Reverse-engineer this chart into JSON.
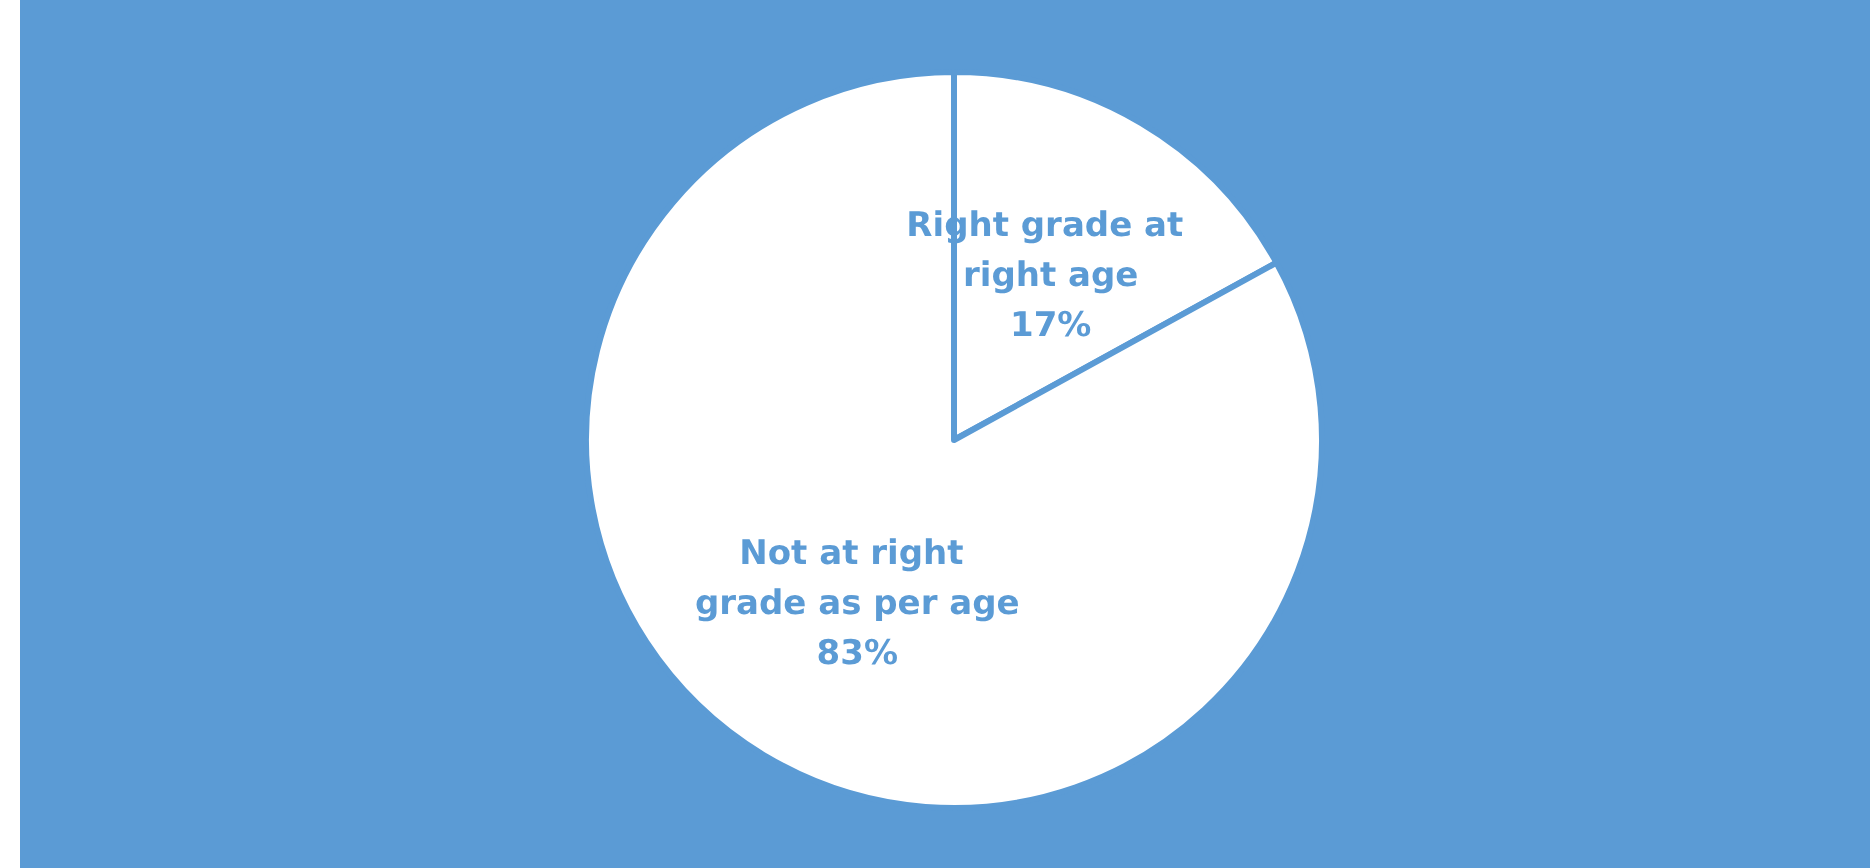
{
  "chart_data": {
    "type": "pie",
    "categories": [
      "Right grade at right age",
      "Not at right grade as per age"
    ],
    "values": [
      17,
      83
    ],
    "colors": [
      "#ffffff",
      "#ffffff"
    ],
    "value_labels": [
      "17%",
      "83%"
    ],
    "legend": false
  }
}
